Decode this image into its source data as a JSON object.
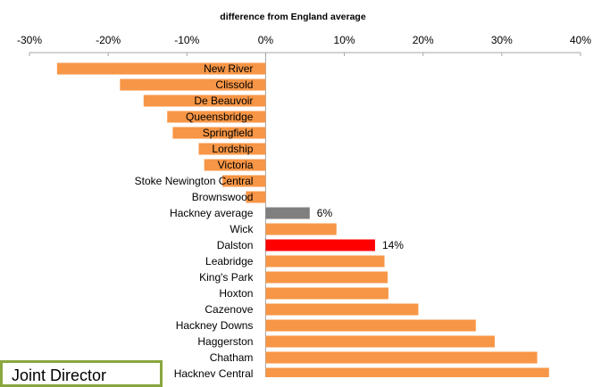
{
  "chart_data": {
    "type": "bar",
    "orientation": "horizontal",
    "title": "difference from England  average",
    "xlim": [
      -30,
      40
    ],
    "x_ticks": [
      "-30%",
      "-20%",
      "-10%",
      "0%",
      "10%",
      "20%",
      "30%",
      "40%"
    ],
    "x_tick_values": [
      -30,
      -20,
      -10,
      0,
      10,
      20,
      30,
      40
    ],
    "grid": false,
    "categories": [
      "New River",
      "Clissold",
      "De Beauvoir",
      "Queensbridge",
      "Springfield",
      "Lordship",
      "Victoria",
      "Stoke Newington Central",
      "Brownswood",
      "Hackney average",
      "Wick",
      "Dalston",
      "Leabridge",
      "King's Park",
      "Hoxton",
      "Cazenove",
      "Hackney Downs",
      "Haggerston",
      "Chatham",
      "Hackney Central"
    ],
    "values": [
      -26.5,
      -18.5,
      -15.5,
      -12.5,
      -11.8,
      -8.5,
      -7.8,
      -5.5,
      -2.5,
      5.6,
      9,
      13.9,
      15.1,
      15.5,
      15.6,
      19.4,
      26.7,
      29.1,
      34.5,
      36
    ],
    "data_labels": {
      "Hackney average": "6%",
      "Dalston": "14%"
    },
    "bar_colors": {
      "default": "#f79646",
      "Hackney average": "#7f7f7f",
      "Dalston": "#ff0000"
    }
  },
  "callout": {
    "text": "Joint Director"
  }
}
